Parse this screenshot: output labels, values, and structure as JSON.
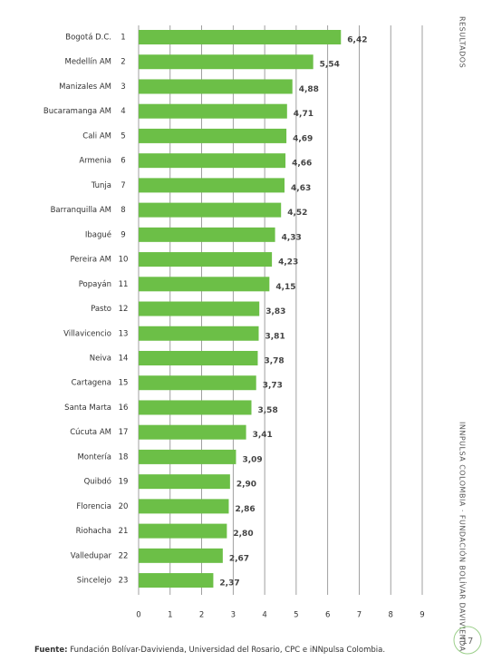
{
  "chart_data": {
    "type": "bar",
    "orientation": "horizontal",
    "categories": [
      "Bogotá D.C.",
      "Medellín AM",
      "Manizales AM",
      "Bucaramanga AM",
      "Cali AM",
      "Armenia",
      "Tunja",
      "Barranquilla AM",
      "Ibagué",
      "Pereira AM",
      "Popayán",
      "Pasto",
      "Villavicencio",
      "Neiva",
      "Cartagena",
      "Santa Marta",
      "Cúcuta AM",
      "Montería",
      "Quibdó",
      "Florencia",
      "Riohacha",
      "Valledupar",
      "Sincelejo"
    ],
    "ranks": [
      1,
      2,
      3,
      4,
      5,
      6,
      7,
      8,
      9,
      10,
      11,
      12,
      13,
      14,
      15,
      16,
      17,
      18,
      19,
      20,
      21,
      22,
      23
    ],
    "values": [
      6.42,
      5.54,
      4.88,
      4.71,
      4.69,
      4.66,
      4.63,
      4.52,
      4.33,
      4.23,
      4.15,
      3.83,
      3.81,
      3.78,
      3.73,
      3.58,
      3.41,
      3.09,
      2.9,
      2.86,
      2.8,
      2.67,
      2.37
    ],
    "value_labels": [
      "6,42",
      "5,54",
      "4,88",
      "4,71",
      "4,69",
      "4,66",
      "4,63",
      "4,52",
      "4,33",
      "4,23",
      "4,15",
      "3,83",
      "3,81",
      "3,78",
      "3,73",
      "3,58",
      "3,41",
      "3,09",
      "2,90",
      "2,86",
      "2,80",
      "2,67",
      "2,37"
    ],
    "color": "#6cbf47",
    "xlim": [
      0,
      9
    ],
    "xticks": [
      0,
      1,
      2,
      3,
      4,
      5,
      6,
      7,
      8,
      9
    ],
    "grid": true
  },
  "side_header": "RESULTADOS",
  "side_footer": "INNPULSA COLOMBIA · FUNDACIÓN BOLÍVAR DAVIVIENDA",
  "page_number": "17",
  "source_label": "Fuente:",
  "source": "Fundación Bolívar-Davivienda, Universidad del Rosario, CPC e iNNpulsa Colombia."
}
